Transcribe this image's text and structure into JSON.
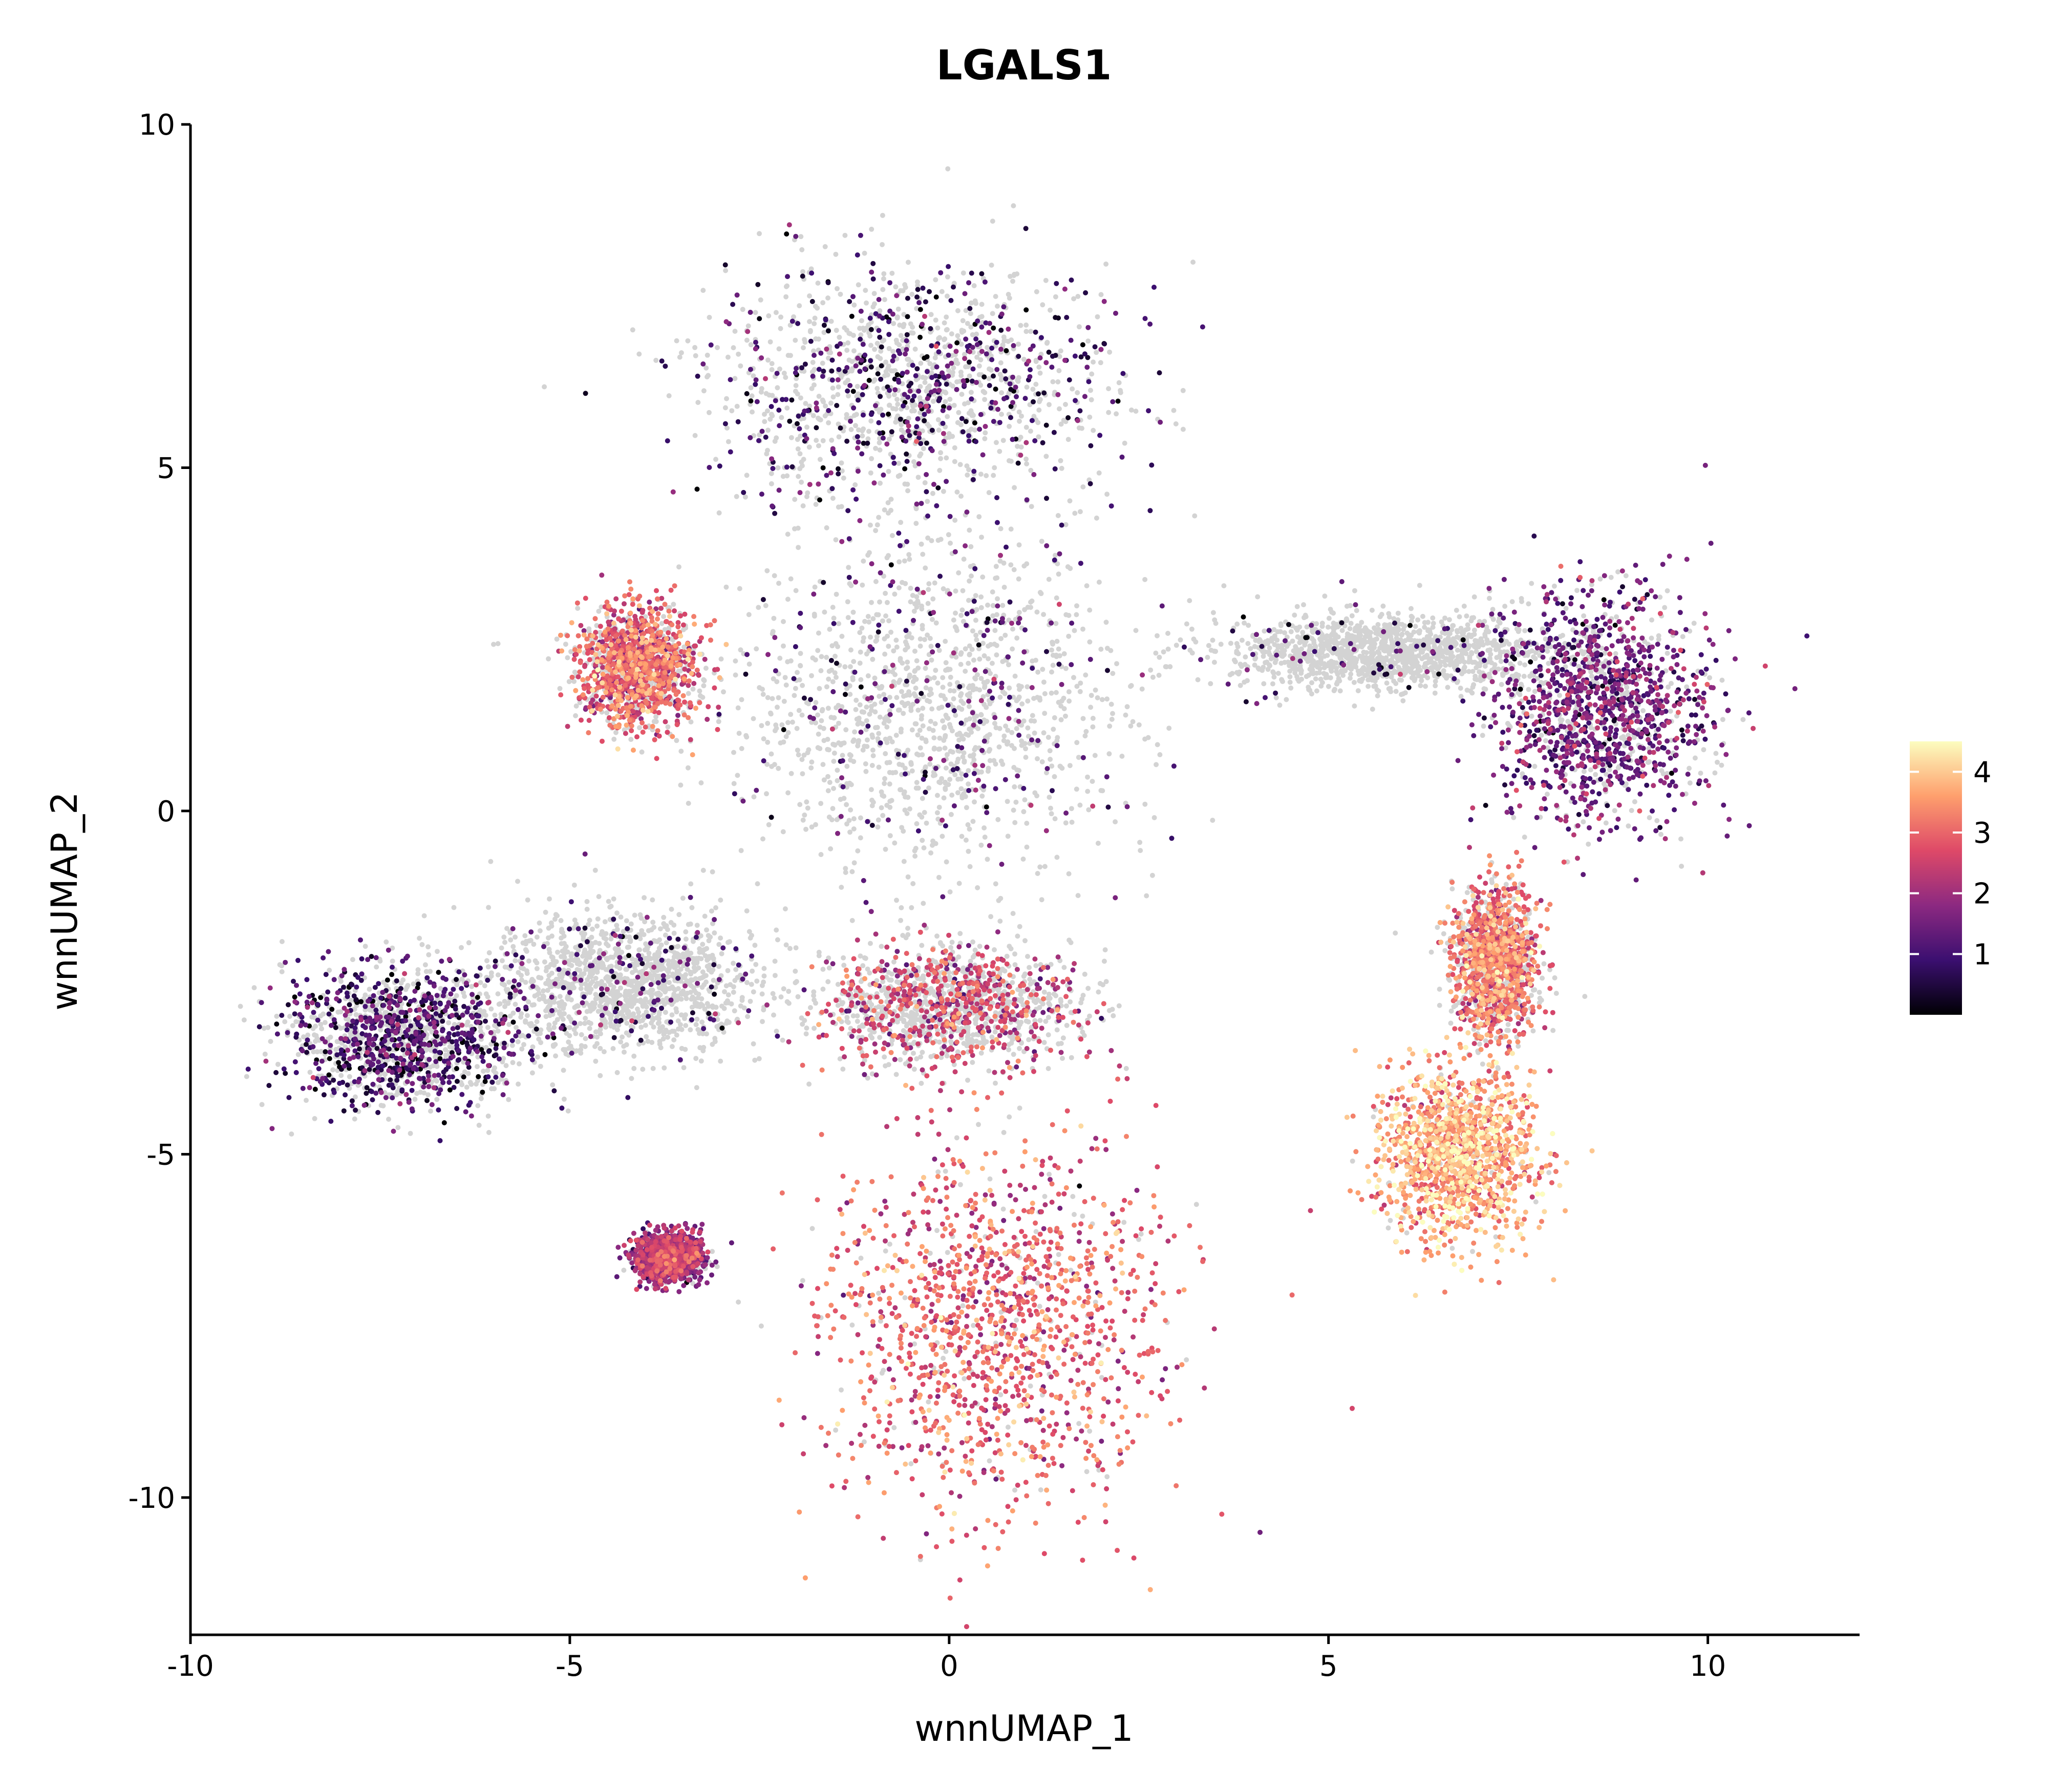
{
  "chart_data": {
    "type": "scatter",
    "title": "LGALS1",
    "xlabel": "wnnUMAP_1",
    "ylabel": "wnnUMAP_2",
    "xlim": [
      -10,
      12
    ],
    "ylim": [
      -12,
      10
    ],
    "xticks": [
      -10,
      -5,
      0,
      5,
      10
    ],
    "yticks": [
      -10,
      -5,
      0,
      5,
      10
    ],
    "xtick_labels": [
      "-10",
      "-5",
      "0",
      "5",
      "10"
    ],
    "ytick_labels": [
      "-10",
      "-5",
      "0",
      "5",
      "10"
    ],
    "grid": false,
    "background_point_color": "#d3d3d3",
    "colorscale": "magma",
    "colorbar": {
      "range": [
        0,
        4.5
      ],
      "ticks": [
        1,
        2,
        3,
        4
      ],
      "tick_labels": [
        "1",
        "2",
        "3",
        "4"
      ],
      "placement": "right",
      "colors": [
        "#000004",
        "#3b0f70",
        "#8c2981",
        "#de4968",
        "#fe9f6d",
        "#fcfdbf"
      ]
    },
    "clusters": [
      {
        "name": "top-center",
        "center": [
          -0.5,
          6.2
        ],
        "spread": [
          2.4,
          1.6
        ],
        "expression_mean": 0.9,
        "expressed_fraction": 0.35
      },
      {
        "name": "center-body",
        "center": [
          -0.2,
          1.5
        ],
        "spread": [
          2.2,
          2.2
        ],
        "expression_mean": 1.2,
        "expressed_fraction": 0.15
      },
      {
        "name": "left-upper-lobe",
        "center": [
          -4.1,
          2.1
        ],
        "spread": [
          0.7,
          0.8
        ],
        "expression_mean": 2.8,
        "expressed_fraction": 0.7
      },
      {
        "name": "left-cluster",
        "center": [
          -7.2,
          -3.3
        ],
        "spread": [
          1.4,
          0.9
        ],
        "expression_mean": 0.9,
        "expressed_fraction": 0.55
      },
      {
        "name": "left-bridge",
        "center": [
          -4.3,
          -2.5
        ],
        "spread": [
          1.6,
          0.9
        ],
        "expression_mean": 1.1,
        "expressed_fraction": 0.1
      },
      {
        "name": "small-lower-left",
        "center": [
          -3.7,
          -6.5
        ],
        "spread": [
          0.4,
          0.3
        ],
        "expression_mean": 1.8,
        "expressed_fraction": 0.85
      },
      {
        "name": "bottom-large",
        "center": [
          0.6,
          -7.5
        ],
        "spread": [
          2.0,
          2.4
        ],
        "expression_mean": 2.9,
        "expressed_fraction": 0.92
      },
      {
        "name": "mid-stream",
        "center": [
          0.0,
          -2.8
        ],
        "spread": [
          1.5,
          0.8
        ],
        "expression_mean": 2.4,
        "expressed_fraction": 0.4
      },
      {
        "name": "right-upper",
        "center": [
          8.6,
          1.5
        ],
        "spread": [
          1.3,
          1.5
        ],
        "expression_mean": 1.4,
        "expressed_fraction": 0.75
      },
      {
        "name": "right-bridge",
        "center": [
          5.8,
          2.3
        ],
        "spread": [
          2.0,
          0.5
        ],
        "expression_mean": 1.0,
        "expressed_fraction": 0.05
      },
      {
        "name": "right-lower",
        "center": [
          6.7,
          -5.0
        ],
        "spread": [
          0.9,
          1.1
        ],
        "expression_mean": 3.6,
        "expressed_fraction": 0.95
      },
      {
        "name": "right-stem",
        "center": [
          7.2,
          -2.2
        ],
        "spread": [
          0.5,
          1.0
        ],
        "expression_mean": 3.0,
        "expressed_fraction": 0.7
      }
    ]
  }
}
